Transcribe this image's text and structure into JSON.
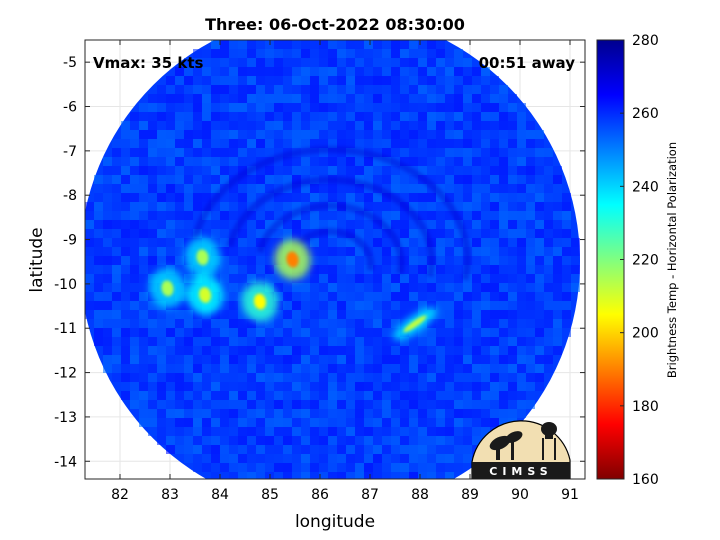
{
  "chart_data": {
    "type": "heatmap",
    "title": "Three: 06-Oct-2022 08:30:00",
    "xlabel": "longitude",
    "ylabel": "latitude",
    "xlim": [
      81.3,
      91.3
    ],
    "ylim": [
      -14.4,
      -4.5
    ],
    "x_ticks": [
      82,
      83,
      84,
      85,
      86,
      87,
      88,
      89,
      90,
      91
    ],
    "y_ticks": [
      -5,
      -6,
      -7,
      -8,
      -9,
      -10,
      -11,
      -12,
      -13,
      -14
    ],
    "grid": true,
    "annotations": {
      "vmax": "Vmax: 35 kts",
      "time_offset": "00:51 away"
    },
    "colorbar": {
      "label": "Brightness Temp - Horizontal Polarization",
      "range": [
        160,
        280
      ],
      "ticks": [
        160,
        180,
        200,
        220,
        240,
        260,
        280
      ],
      "colors": [
        "#800000",
        "#ff0000",
        "#ff8000",
        "#ffff00",
        "#80ff80",
        "#00ffff",
        "#0080ff",
        "#0000ff",
        "#00008f"
      ]
    },
    "swath": {
      "center": [
        86.2,
        -9.5
      ],
      "radius_deg": 5.0
    },
    "background_temp_k": 258,
    "cold_features": [
      {
        "name": "convective cell",
        "lon": 85.45,
        "lat": -9.45,
        "temp_k": 190
      },
      {
        "name": "convective band",
        "lon": 84.8,
        "lat": -10.4,
        "temp_k": 205
      },
      {
        "name": "convective band",
        "lon": 83.65,
        "lat": -9.4,
        "temp_k": 215
      },
      {
        "name": "convective band",
        "lon": 83.7,
        "lat": -10.25,
        "temp_k": 210
      },
      {
        "name": "convective band",
        "lon": 82.95,
        "lat": -10.1,
        "temp_k": 215
      },
      {
        "name": "rain band",
        "lon": 87.9,
        "lat": -10.9,
        "temp_k": 212
      }
    ]
  },
  "logo": {
    "text": "CIMSS"
  }
}
